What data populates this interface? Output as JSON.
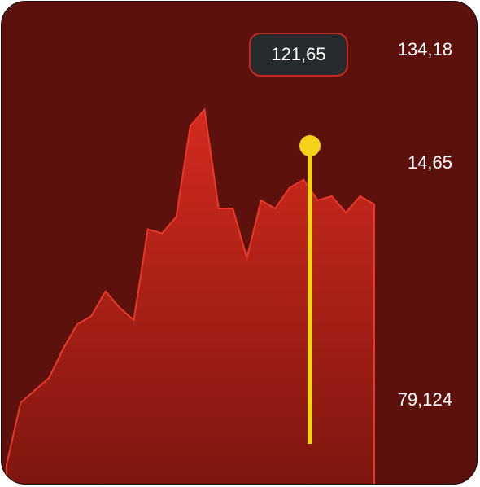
{
  "chart_data": {
    "type": "area",
    "y": [
      [
        0.29
      ],
      [
        0.21,
        0.24,
        0.27,
        0.33,
        0.38,
        0.45,
        0.48,
        0.58,
        0.53
      ],
      [
        0.63,
        0.64,
        0.66,
        0.68,
        0.73,
        0.74,
        0.79,
        0.84,
        0.84,
        0.86
      ],
      [
        0.9,
        0.91,
        0.94,
        0.96,
        0.98,
        1.05,
        1.0
      ],
      [
        1.05,
        1.04,
        1.02,
        1.05,
        1.03,
        1.05,
        1.04,
        1.02,
        1.05,
        1.03,
        1.0,
        1.05,
        1.03
      ]
    ],
    "y_axis_labels": [
      "134,18",
      "14,65",
      "79,124"
    ],
    "tooltip_value": "121,65",
    "colors": {
      "background": "#5c110c",
      "area_top": "#d42a1e",
      "area_bottom": "#7e160f",
      "line": "#e8392b",
      "cursor": "#f5d21a",
      "tooltip_bg": "#262b2e",
      "tooltip_border": "#c8271e"
    }
  }
}
